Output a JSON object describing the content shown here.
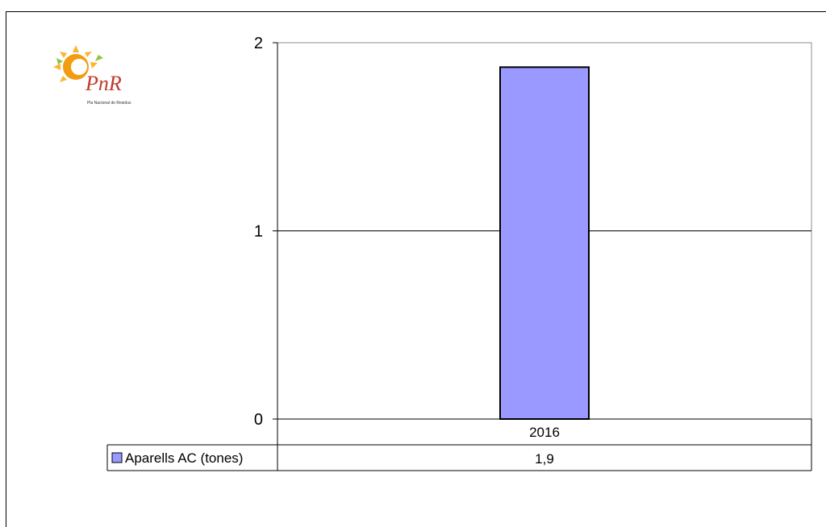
{
  "logo": {
    "text": "PnR",
    "caption": "Pla Nacional de Residus"
  },
  "chart_data": {
    "type": "bar",
    "categories": [
      "2016"
    ],
    "series": [
      {
        "name": "Aparells AC (tones)",
        "values": [
          1.87
        ],
        "color": "#9999ff"
      }
    ],
    "data_table": {
      "header": [
        "2016"
      ],
      "rows": [
        {
          "label": "Aparells AC (tones)",
          "cells": [
            "1,9"
          ]
        }
      ]
    },
    "y_ticks": [
      "0",
      "1",
      "2"
    ],
    "ylim": [
      0,
      2
    ],
    "grid": true,
    "title": "",
    "xlabel": "",
    "ylabel": ""
  }
}
